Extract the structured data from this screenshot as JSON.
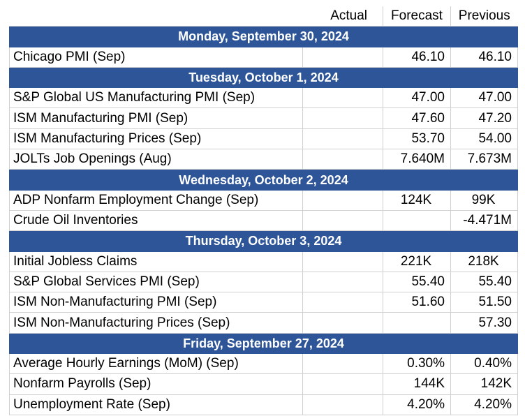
{
  "headers": {
    "event": "",
    "actual": "Actual",
    "forecast": "Forecast",
    "previous": "Previous"
  },
  "days": [
    {
      "title": "Monday, September 30, 2024",
      "rows": [
        {
          "event": "Chicago PMI (Sep)",
          "actual": "",
          "forecast": "46.10",
          "previous": "46.10"
        }
      ]
    },
    {
      "title": "Tuesday, October 1, 2024",
      "rows": [
        {
          "event": "S&P Global US Manufacturing PMI (Sep)",
          "actual": "",
          "forecast": "47.00",
          "previous": "47.00"
        },
        {
          "event": "ISM Manufacturing PMI (Sep)",
          "actual": "",
          "forecast": "47.60",
          "previous": "47.20"
        },
        {
          "event": "ISM Manufacturing Prices (Sep)",
          "actual": "",
          "forecast": "53.70",
          "previous": "54.00"
        },
        {
          "event": "JOLTs Job Openings (Aug)",
          "actual": "",
          "forecast": "7.640M",
          "previous": "7.673M"
        }
      ]
    },
    {
      "title": "Wednesday, October 2, 2024",
      "rows": [
        {
          "event": "ADP Nonfarm Employment Change (Sep)",
          "actual": "",
          "forecast": "124K",
          "previous": "99K"
        },
        {
          "event": "Crude Oil Inventories",
          "actual": "",
          "forecast": "",
          "previous": "-4.471M"
        }
      ]
    },
    {
      "title": "Thursday, October 3, 2024",
      "rows": [
        {
          "event": "Initial Jobless Claims",
          "actual": "",
          "forecast": "221K",
          "previous": "218K"
        },
        {
          "event": "S&P Global Services PMI (Sep)",
          "actual": "",
          "forecast": "55.40",
          "previous": "55.40"
        },
        {
          "event": "ISM Non-Manufacturing PMI (Sep)",
          "actual": "",
          "forecast": "51.60",
          "previous": "51.50"
        },
        {
          "event": "ISM Non-Manufacturing Prices (Sep)",
          "actual": "",
          "forecast": "",
          "previous": "57.30"
        }
      ]
    },
    {
      "title": "Friday, September 27, 2024",
      "rows": [
        {
          "event": "Average Hourly Earnings (MoM) (Sep)",
          "actual": "",
          "forecast": "0.30%",
          "previous": "0.40%"
        },
        {
          "event": "Nonfarm Payrolls (Sep)",
          "actual": "",
          "forecast": "144K",
          "previous": "142K"
        },
        {
          "event": "Unemployment Rate (Sep)",
          "actual": "",
          "forecast": "4.20%",
          "previous": "4.20%"
        }
      ]
    }
  ],
  "colors": {
    "day_header_bg": "#2e5597",
    "day_header_text": "#ffffff",
    "grid": "#d0d0d0"
  }
}
